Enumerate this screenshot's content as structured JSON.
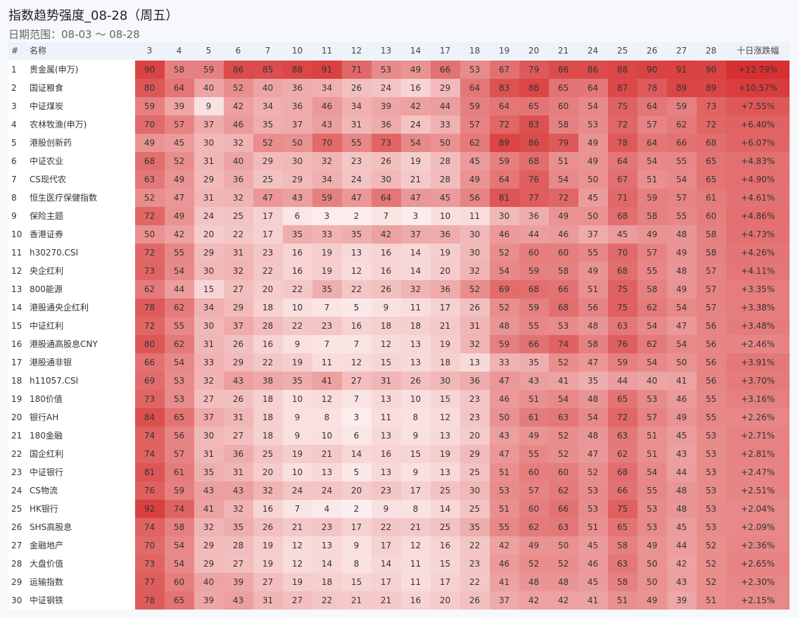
{
  "header": {
    "title": "指数趋势强度_08-28（周五）",
    "subtitle": "日期范围：08-03 ～ 08-28"
  },
  "table": {
    "columns": [
      "#",
      "名称",
      "3",
      "4",
      "5",
      "6",
      "7",
      "10",
      "11",
      "12",
      "13",
      "14",
      "17",
      "18",
      "19",
      "20",
      "21",
      "24",
      "25",
      "26",
      "27",
      "28",
      "十日涨跌幅"
    ],
    "rows": [
      [
        1,
        "贵金属(申万)",
        90,
        58,
        59,
        86,
        85,
        88,
        91,
        71,
        53,
        49,
        66,
        53,
        67,
        79,
        86,
        86,
        88,
        90,
        91,
        90,
        "+12.79%"
      ],
      [
        2,
        "国证粮食",
        80,
        64,
        40,
        52,
        40,
        36,
        34,
        26,
        24,
        16,
        29,
        64,
        83,
        88,
        65,
        64,
        87,
        78,
        89,
        89,
        "+10.57%"
      ],
      [
        3,
        "中证煤炭",
        59,
        39,
        9,
        42,
        34,
        36,
        46,
        34,
        39,
        42,
        44,
        59,
        64,
        65,
        60,
        54,
        75,
        64,
        59,
        73,
        "+7.55%"
      ],
      [
        4,
        "农林牧渔(申万)",
        70,
        57,
        37,
        46,
        35,
        37,
        43,
        31,
        36,
        24,
        33,
        57,
        72,
        83,
        58,
        53,
        72,
        57,
        62,
        72,
        "+6.40%"
      ],
      [
        5,
        "港股创新药",
        49,
        45,
        30,
        32,
        52,
        50,
        70,
        55,
        73,
        54,
        50,
        62,
        89,
        86,
        79,
        49,
        78,
        64,
        66,
        68,
        "+6.07%"
      ],
      [
        6,
        "中证农业",
        68,
        52,
        31,
        40,
        29,
        30,
        32,
        23,
        26,
        19,
        28,
        45,
        59,
        68,
        51,
        49,
        64,
        54,
        55,
        65,
        "+4.83%"
      ],
      [
        7,
        "CS现代农",
        63,
        49,
        29,
        36,
        25,
        29,
        34,
        24,
        30,
        21,
        28,
        49,
        64,
        76,
        54,
        50,
        67,
        51,
        54,
        65,
        "+4.90%"
      ],
      [
        8,
        "恒生医疗保健指数",
        52,
        47,
        31,
        32,
        47,
        43,
        59,
        47,
        64,
        47,
        45,
        56,
        81,
        77,
        72,
        45,
        71,
        59,
        57,
        61,
        "+4.61%"
      ],
      [
        9,
        "保险主题",
        72,
        49,
        24,
        25,
        17,
        6,
        3,
        2,
        7,
        3,
        10,
        11,
        30,
        36,
        49,
        50,
        68,
        58,
        55,
        60,
        "+4.86%"
      ],
      [
        10,
        "香港证券",
        50,
        42,
        20,
        22,
        17,
        35,
        33,
        35,
        42,
        37,
        36,
        30,
        46,
        44,
        46,
        37,
        45,
        49,
        48,
        58,
        "+4.73%"
      ],
      [
        11,
        "h30270.CSI",
        72,
        55,
        29,
        31,
        23,
        16,
        19,
        13,
        16,
        14,
        19,
        30,
        52,
        60,
        60,
        55,
        70,
        57,
        49,
        58,
        "+4.26%"
      ],
      [
        12,
        "央企红利",
        73,
        54,
        30,
        32,
        22,
        16,
        19,
        12,
        16,
        14,
        20,
        32,
        54,
        59,
        58,
        49,
        68,
        55,
        48,
        57,
        "+4.11%"
      ],
      [
        13,
        "800能源",
        62,
        44,
        15,
        27,
        20,
        22,
        35,
        22,
        26,
        32,
        36,
        52,
        69,
        68,
        66,
        51,
        75,
        58,
        49,
        57,
        "+3.35%"
      ],
      [
        14,
        "港股通央企红利",
        78,
        62,
        34,
        29,
        18,
        10,
        7,
        5,
        9,
        11,
        17,
        26,
        52,
        59,
        68,
        56,
        75,
        62,
        54,
        57,
        "+3.38%"
      ],
      [
        15,
        "中证红利",
        72,
        55,
        30,
        37,
        28,
        22,
        23,
        16,
        18,
        18,
        21,
        31,
        48,
        55,
        53,
        48,
        63,
        54,
        47,
        56,
        "+3.48%"
      ],
      [
        16,
        "港股通高股息CNY",
        80,
        62,
        31,
        26,
        16,
        9,
        7,
        7,
        12,
        13,
        19,
        32,
        59,
        66,
        74,
        58,
        76,
        62,
        54,
        56,
        "+2.46%"
      ],
      [
        17,
        "港股通非银",
        66,
        54,
        33,
        29,
        22,
        19,
        11,
        12,
        15,
        13,
        18,
        13,
        33,
        35,
        52,
        47,
        59,
        54,
        50,
        56,
        "+3.91%"
      ],
      [
        18,
        "h11057.CSI",
        69,
        53,
        32,
        43,
        38,
        35,
        41,
        27,
        31,
        26,
        30,
        36,
        47,
        43,
        41,
        35,
        44,
        40,
        41,
        56,
        "+3.70%"
      ],
      [
        19,
        "180价值",
        73,
        53,
        27,
        26,
        18,
        10,
        12,
        7,
        13,
        10,
        15,
        23,
        46,
        51,
        54,
        48,
        65,
        53,
        46,
        55,
        "+3.16%"
      ],
      [
        20,
        "银行AH",
        84,
        65,
        37,
        31,
        18,
        9,
        8,
        3,
        11,
        8,
        12,
        23,
        50,
        61,
        63,
        54,
        72,
        57,
        49,
        55,
        "+2.26%"
      ],
      [
        21,
        "180金融",
        74,
        56,
        30,
        27,
        18,
        9,
        10,
        6,
        13,
        9,
        13,
        20,
        43,
        49,
        52,
        48,
        63,
        51,
        45,
        53,
        "+2.71%"
      ],
      [
        22,
        "国企红利",
        74,
        57,
        31,
        36,
        25,
        19,
        21,
        14,
        16,
        15,
        19,
        29,
        47,
        55,
        52,
        47,
        62,
        51,
        43,
        53,
        "+2.81%"
      ],
      [
        23,
        "中证银行",
        81,
        61,
        35,
        31,
        20,
        10,
        13,
        5,
        13,
        9,
        13,
        25,
        51,
        60,
        60,
        52,
        68,
        54,
        44,
        53,
        "+2.47%"
      ],
      [
        24,
        "CS物流",
        76,
        59,
        43,
        43,
        32,
        24,
        24,
        20,
        23,
        17,
        25,
        30,
        53,
        57,
        62,
        53,
        66,
        55,
        48,
        53,
        "+2.51%"
      ],
      [
        25,
        "HK银行",
        92,
        74,
        41,
        32,
        16,
        7,
        4,
        2,
        9,
        8,
        14,
        25,
        51,
        60,
        66,
        53,
        75,
        53,
        48,
        53,
        "+2.04%"
      ],
      [
        26,
        "SHS高股息",
        74,
        58,
        32,
        35,
        26,
        21,
        23,
        17,
        22,
        21,
        25,
        35,
        55,
        62,
        63,
        51,
        65,
        53,
        45,
        53,
        "+2.09%"
      ],
      [
        27,
        "金融地产",
        70,
        54,
        29,
        28,
        19,
        12,
        13,
        9,
        17,
        12,
        16,
        22,
        42,
        49,
        50,
        45,
        58,
        49,
        44,
        52,
        "+2.36%"
      ],
      [
        28,
        "大盘价值",
        73,
        54,
        29,
        27,
        19,
        12,
        14,
        8,
        14,
        11,
        15,
        23,
        46,
        52,
        52,
        46,
        63,
        50,
        42,
        52,
        "+2.65%"
      ],
      [
        29,
        "运输指数",
        77,
        60,
        40,
        39,
        27,
        19,
        18,
        15,
        17,
        11,
        17,
        22,
        41,
        48,
        48,
        45,
        58,
        50,
        43,
        52,
        "+2.30%"
      ],
      [
        30,
        "中证钢铁",
        78,
        65,
        39,
        43,
        31,
        27,
        22,
        21,
        21,
        16,
        20,
        26,
        37,
        42,
        42,
        41,
        51,
        49,
        39,
        51,
        "+2.15%"
      ]
    ]
  }
}
